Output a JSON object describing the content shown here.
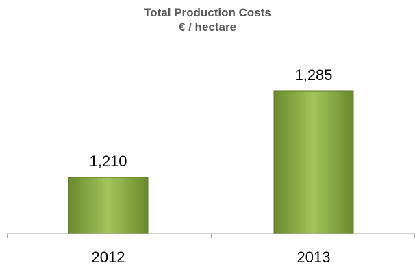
{
  "chart_data": {
    "type": "bar",
    "title": "Total Production Costs",
    "subtitle": "€ / hectare",
    "categories": [
      "2012",
      "2013"
    ],
    "values": [
      1210,
      1285
    ],
    "data_labels": [
      "1,210",
      "1,285"
    ],
    "xlabel": "",
    "ylabel": "",
    "grid": false,
    "legend": "none",
    "colors": {
      "bar_light": "#a2c45a",
      "bar_dark": "#6a8a2c",
      "bar_edge": "#5a7a22",
      "axis": "#a6a6a6",
      "title": "#595959"
    }
  }
}
